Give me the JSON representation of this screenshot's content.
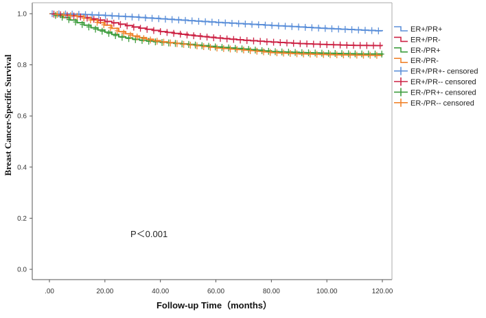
{
  "chart_data": {
    "type": "line",
    "title": "",
    "xlabel": "Follow-up Time（months）",
    "ylabel": "Breast Cancer-Specific Survival",
    "xlim": [
      0,
      120
    ],
    "ylim": [
      0,
      1.0
    ],
    "x_ticks": [
      ".00",
      "20.00",
      "40.00",
      "60.00",
      "80.00",
      "100.00",
      "120.00"
    ],
    "y_ticks": [
      "0.0",
      "0.2",
      "0.4",
      "0.6",
      "0.8",
      "1.0"
    ],
    "grid": false,
    "legend_position": "right",
    "annotation": "P＜0.001",
    "series": [
      {
        "name": "ER+/PR+",
        "color": "#5b8fd9",
        "x": [
          0,
          10,
          20,
          30,
          40,
          50,
          60,
          70,
          80,
          90,
          100,
          110,
          120
        ],
        "y": [
          1.0,
          0.998,
          0.993,
          0.987,
          0.98,
          0.973,
          0.966,
          0.96,
          0.954,
          0.948,
          0.942,
          0.937,
          0.932
        ]
      },
      {
        "name": "ER+/PR-",
        "color": "#cc2244",
        "x": [
          0,
          10,
          20,
          30,
          40,
          50,
          60,
          70,
          80,
          90,
          100,
          110,
          120
        ],
        "y": [
          1.0,
          0.99,
          0.97,
          0.948,
          0.93,
          0.916,
          0.905,
          0.896,
          0.889,
          0.883,
          0.879,
          0.876,
          0.875
        ]
      },
      {
        "name": "ER-/PR+",
        "color": "#3c9c3c",
        "x": [
          0,
          5,
          10,
          15,
          20,
          25,
          30,
          35,
          40,
          50,
          60,
          70,
          80,
          90,
          100,
          110,
          120
        ],
        "y": [
          1.0,
          0.985,
          0.965,
          0.945,
          0.928,
          0.91,
          0.9,
          0.893,
          0.888,
          0.88,
          0.87,
          0.862,
          0.852,
          0.848,
          0.845,
          0.843,
          0.842
        ]
      },
      {
        "name": "ER-/PR-",
        "color": "#f0832c",
        "x": [
          0,
          10,
          15,
          20,
          25,
          30,
          35,
          40,
          50,
          60,
          70,
          80,
          90,
          100,
          110,
          120
        ],
        "y": [
          1.0,
          0.99,
          0.975,
          0.955,
          0.93,
          0.913,
          0.9,
          0.89,
          0.878,
          0.866,
          0.858,
          0.848,
          0.843,
          0.84,
          0.838,
          0.837
        ]
      }
    ],
    "censored_legend": [
      "ER+/PR+- censored",
      "ER+/PR-- censored",
      "ER-/PR+- censored",
      "ER-/PR-- censored"
    ]
  }
}
